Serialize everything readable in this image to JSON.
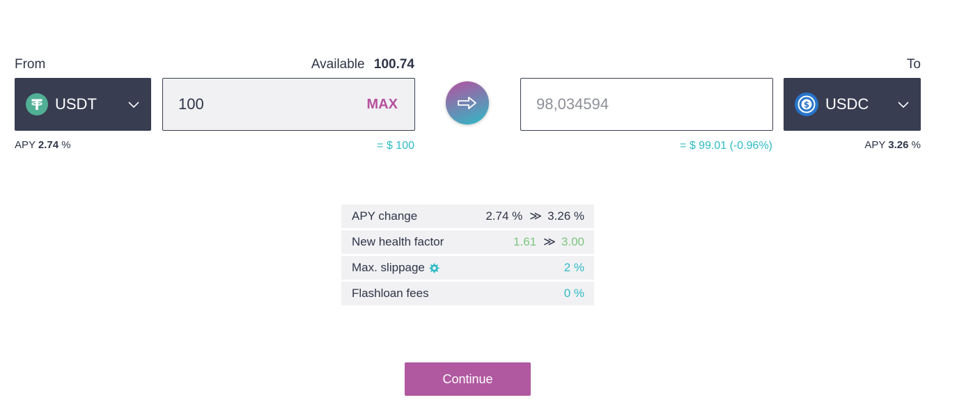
{
  "from": {
    "label": "From",
    "token": "USDT",
    "available_label": "Available",
    "available_value": "100.74",
    "amount": "100",
    "max_label": "MAX",
    "usd_value": "= $ 100",
    "apy_label": "APY",
    "apy_value": "2.74",
    "apy_unit": "%",
    "token_icon": "tether-logo-icon",
    "token_color": "#50af95"
  },
  "swap": {
    "icon": "arrow-right-icon"
  },
  "to": {
    "label": "To",
    "token": "USDC",
    "amount_placeholder": "98,034594",
    "usd_value": "= $ 99.01 (-0.96%)",
    "apy_label": "APY",
    "apy_value": "3.26",
    "apy_unit": "%",
    "token_icon": "usdc-logo-icon",
    "token_color": "#2775ca"
  },
  "info": {
    "rows": [
      {
        "label": "APY change",
        "from": "2.74 %",
        "separator": "≫",
        "to": "3.26 %"
      },
      {
        "label": "New health factor",
        "from": "1.61",
        "separator": "≫",
        "to": "3.00"
      },
      {
        "label": "Max. slippage",
        "value": "2 %",
        "icon": "gear-icon"
      },
      {
        "label": "Flashloan fees",
        "value": "0 %"
      }
    ]
  },
  "continue_label": "Continue",
  "colors": {
    "primary": "#b6509e",
    "accent": "#2ebac6",
    "dark": "#383d51",
    "positive": "#7bc47f"
  }
}
